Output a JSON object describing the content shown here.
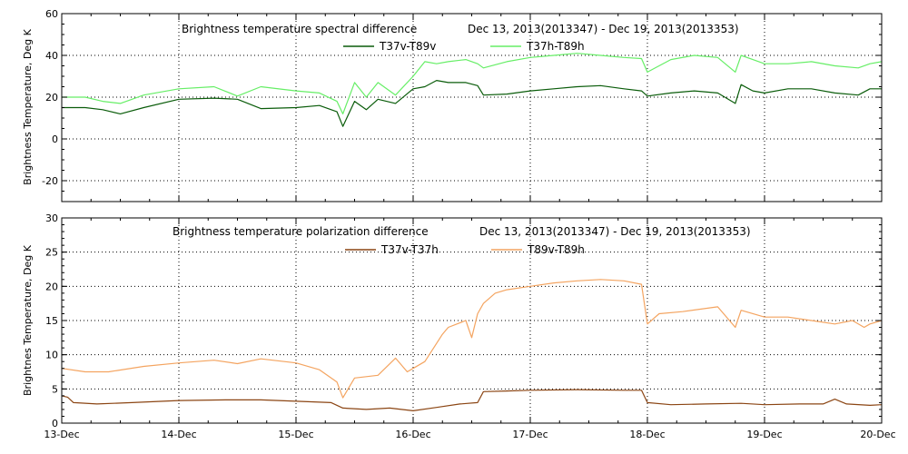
{
  "chart_data": [
    {
      "type": "line",
      "title": "Brightness temperature spectral difference",
      "date_range": "Dec 13, 2013(2013347) - Dec 19, 2013(2013353)",
      "ylabel": "Brightness Temperature, Deg K",
      "xlabel": "",
      "ylim": [
        -30,
        60
      ],
      "yticks": [
        "-20",
        "0",
        "20",
        "40",
        "60"
      ],
      "xlim": [
        13,
        20
      ],
      "xticks": [
        "13-Dec",
        "14-Dec",
        "15-Dec",
        "16-Dec",
        "17-Dec",
        "18-Dec",
        "19-Dec",
        "20-Dec"
      ],
      "grid": true,
      "legend_position": "top",
      "series": [
        {
          "name": "T37v-T89v",
          "color": "#0a5c0a",
          "x": [
            13.0,
            13.2,
            13.35,
            13.5,
            13.7,
            14.0,
            14.3,
            14.5,
            14.7,
            15.0,
            15.2,
            15.35,
            15.4,
            15.5,
            15.6,
            15.7,
            15.85,
            16.0,
            16.1,
            16.2,
            16.3,
            16.45,
            16.55,
            16.6,
            16.8,
            17.0,
            17.2,
            17.4,
            17.6,
            17.8,
            17.95,
            18.0,
            18.2,
            18.4,
            18.6,
            18.75,
            18.8,
            18.9,
            19.0,
            19.2,
            19.4,
            19.6,
            19.8,
            19.9,
            20.0
          ],
          "y": [
            15,
            15,
            14,
            12,
            15,
            19,
            19.5,
            19,
            14.5,
            15,
            16,
            13,
            6,
            18,
            14,
            19,
            17,
            24,
            25,
            28,
            27,
            27,
            25.5,
            21,
            21.5,
            23,
            24,
            25,
            25.5,
            24,
            23,
            20.5,
            22,
            23,
            22,
            17,
            26,
            23,
            22,
            24,
            24,
            22,
            21,
            24,
            24
          ]
        },
        {
          "name": "T37h-T89h",
          "color": "#66ee66",
          "x": [
            13.0,
            13.2,
            13.35,
            13.5,
            13.7,
            14.0,
            14.3,
            14.5,
            14.7,
            15.0,
            15.2,
            15.35,
            15.4,
            15.5,
            15.6,
            15.7,
            15.85,
            16.0,
            16.1,
            16.2,
            16.3,
            16.45,
            16.55,
            16.6,
            16.8,
            17.0,
            17.2,
            17.4,
            17.6,
            17.8,
            17.95,
            18.0,
            18.2,
            18.4,
            18.6,
            18.75,
            18.8,
            18.9,
            19.0,
            19.2,
            19.4,
            19.6,
            19.8,
            19.9,
            20.0
          ],
          "y": [
            20,
            20,
            18,
            17,
            21,
            24,
            25,
            20.5,
            25,
            23,
            22,
            18,
            12,
            27,
            20,
            27,
            21,
            30,
            37,
            36,
            37,
            38,
            36,
            34,
            37,
            39,
            40,
            41,
            40,
            39,
            38.5,
            32,
            38,
            40,
            39,
            32,
            40,
            38,
            36,
            36,
            37,
            35,
            34,
            36,
            37
          ]
        }
      ]
    },
    {
      "type": "line",
      "title": "Brightness temperature polarization difference",
      "date_range": "Dec 13, 2013(2013347) - Dec 19, 2013(2013353)",
      "ylabel": "Brightnes Temperature, Deg K",
      "xlabel": "",
      "ylim": [
        0,
        30
      ],
      "yticks": [
        "0",
        "5",
        "10",
        "15",
        "20",
        "25",
        "30"
      ],
      "xlim": [
        13,
        20
      ],
      "xticks": [
        "13-Dec",
        "14-Dec",
        "15-Dec",
        "16-Dec",
        "17-Dec",
        "18-Dec",
        "19-Dec",
        "20-Dec"
      ],
      "grid": true,
      "legend_position": "top",
      "series": [
        {
          "name": "T37v-T37h",
          "color": "#8b4513",
          "x": [
            13.0,
            13.05,
            13.1,
            13.3,
            13.6,
            14.0,
            14.4,
            14.7,
            15.0,
            15.3,
            15.4,
            15.6,
            15.8,
            16.0,
            16.2,
            16.4,
            16.55,
            16.6,
            16.8,
            17.0,
            17.4,
            17.8,
            17.95,
            18.0,
            18.2,
            18.5,
            18.8,
            19.0,
            19.3,
            19.5,
            19.6,
            19.7,
            19.9,
            20.0
          ],
          "y": [
            4,
            3.8,
            3,
            2.8,
            3,
            3.3,
            3.4,
            3.4,
            3.2,
            3,
            2.2,
            2,
            2.2,
            1.8,
            2.3,
            2.8,
            3,
            4.6,
            4.7,
            4.8,
            4.9,
            4.8,
            4.8,
            3,
            2.7,
            2.8,
            2.9,
            2.7,
            2.8,
            2.8,
            3.5,
            2.8,
            2.6,
            2.7
          ]
        },
        {
          "name": "T89v-T89h",
          "color": "#f4a460",
          "x": [
            13.0,
            13.2,
            13.4,
            13.7,
            14.0,
            14.3,
            14.5,
            14.7,
            15.0,
            15.2,
            15.35,
            15.4,
            15.5,
            15.7,
            15.85,
            15.95,
            16.0,
            16.1,
            16.25,
            16.3,
            16.45,
            16.5,
            16.55,
            16.6,
            16.7,
            16.8,
            17.0,
            17.2,
            17.4,
            17.6,
            17.8,
            17.95,
            18.0,
            18.1,
            18.3,
            18.6,
            18.75,
            18.8,
            19.0,
            19.2,
            19.4,
            19.6,
            19.75,
            19.85,
            19.9,
            20.0
          ],
          "y": [
            8,
            7.5,
            7.5,
            8.3,
            8.8,
            9.2,
            8.7,
            9.4,
            8.8,
            7.8,
            6,
            3.7,
            6.6,
            7,
            9.5,
            7.5,
            8,
            9,
            13,
            14,
            15,
            12.5,
            16,
            17.5,
            19,
            19.5,
            20,
            20.5,
            20.8,
            21,
            20.8,
            20.3,
            14.5,
            16,
            16.3,
            17,
            14,
            16.5,
            15.5,
            15.5,
            15,
            14.5,
            15,
            14,
            14.5,
            15
          ]
        }
      ]
    }
  ]
}
